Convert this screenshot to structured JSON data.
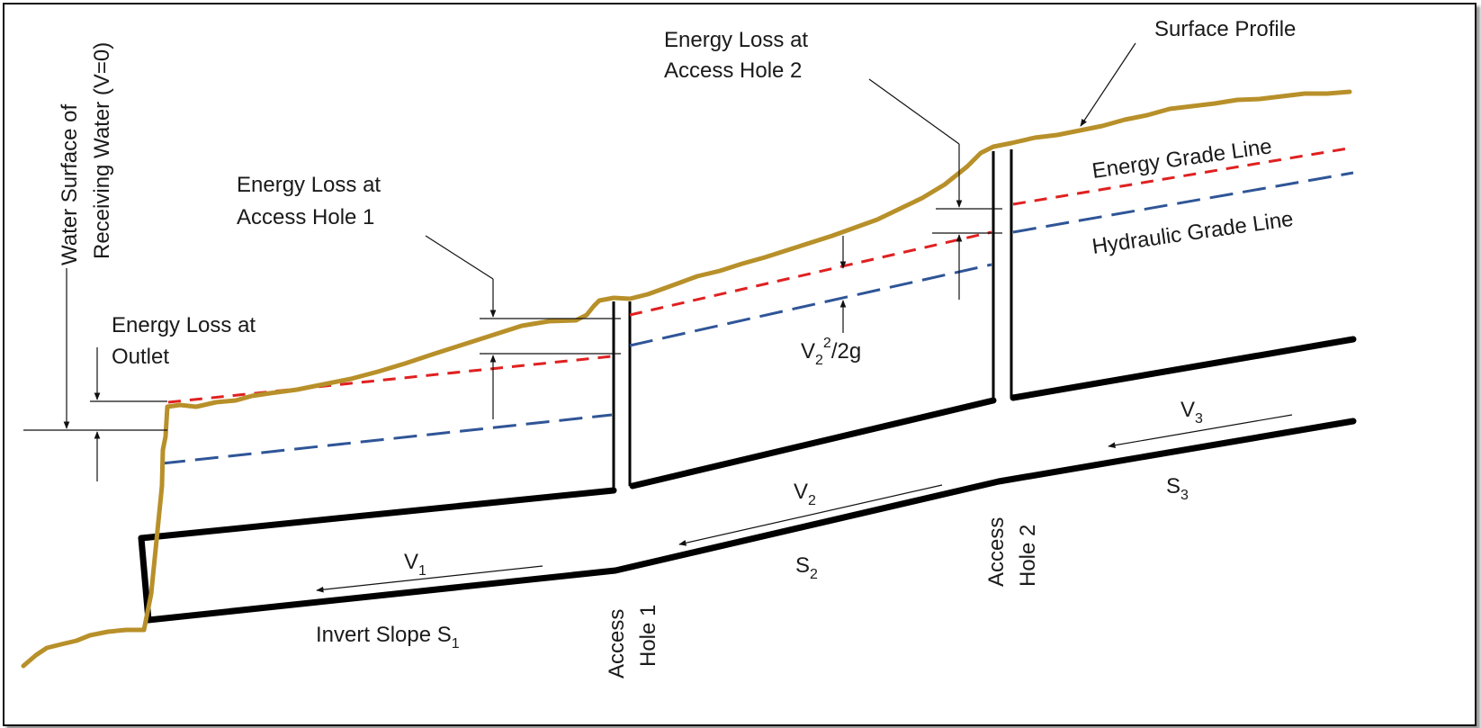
{
  "labels": {
    "surface_profile": "Surface Profile",
    "energy_loss_hole2_line1": "Energy Loss at",
    "energy_loss_hole2_line2": "Access Hole 2",
    "energy_loss_hole1_line1": "Energy Loss at",
    "energy_loss_hole1_line2": "Access Hole 1",
    "energy_loss_outlet_line1": "Energy Loss at",
    "energy_loss_outlet_line2": "Outlet",
    "receiving_water_line1": "Water Surface of",
    "receiving_water_line2": "Receiving Water (V=0)",
    "energy_grade_line": "Energy Grade Line",
    "hydraulic_grade_line": "Hydraulic Grade Line",
    "velocity_head_v": "V",
    "velocity_head_sub": "2",
    "velocity_head_sup": "2",
    "velocity_head_rest": "/2g",
    "v1": "V",
    "v1_sub": "1",
    "v2": "V",
    "v2_sub": "2",
    "v3": "V",
    "v3_sub": "3",
    "invert_slope": "Invert Slope S",
    "invert_slope_sub": "1",
    "s2": "S",
    "s2_sub": "2",
    "s3": "S",
    "s3_sub": "3",
    "access_hole1_line1": "Access",
    "access_hole1_line2": "Hole 1",
    "access_hole2_line1": "Access",
    "access_hole2_line2": "Hole 2"
  },
  "colors": {
    "energy_grade_line": "#e02020",
    "hydraulic_grade_line": "#2f5597",
    "surface_profile": "#b8902a",
    "pipe": "#000000"
  }
}
